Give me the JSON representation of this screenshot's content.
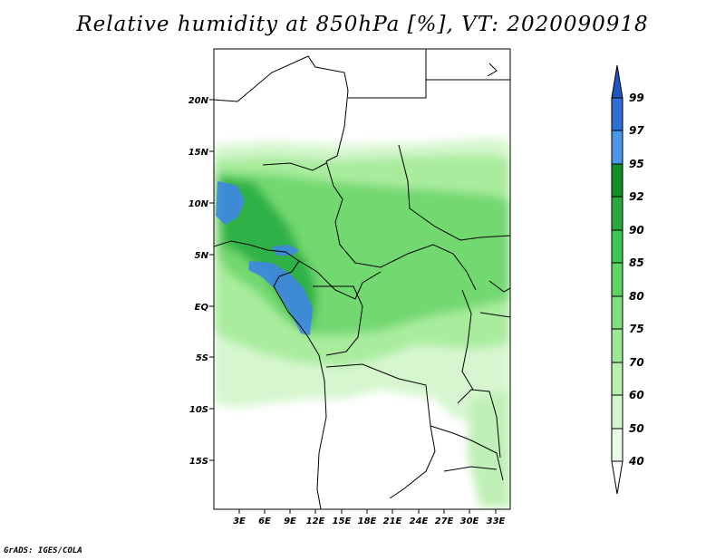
{
  "title": "Relative humidity at 850hPa [%], VT: 2020090918",
  "credit": "GrADS: IGES/COLA",
  "map": {
    "lat_labels": [
      "20N",
      "15N",
      "10N",
      "5N",
      "EQ",
      "5S",
      "10S",
      "15S"
    ],
    "lon_labels": [
      "3E",
      "6E",
      "9E",
      "12E",
      "15E",
      "18E",
      "21E",
      "24E",
      "27E",
      "30E",
      "33E"
    ]
  },
  "colorbar": {
    "levels": [
      "40",
      "50",
      "60",
      "70",
      "75",
      "80",
      "85",
      "90",
      "92",
      "95",
      "97",
      "99"
    ],
    "colors": [
      "#ffffff",
      "#eafbe6",
      "#d2f7cc",
      "#b8f0ae",
      "#9ae893",
      "#7ee07a",
      "#5cd563",
      "#3ec650",
      "#2aa83d",
      "#128f26",
      "#4a96e8",
      "#2e70d8",
      "#1f56c4"
    ]
  }
}
